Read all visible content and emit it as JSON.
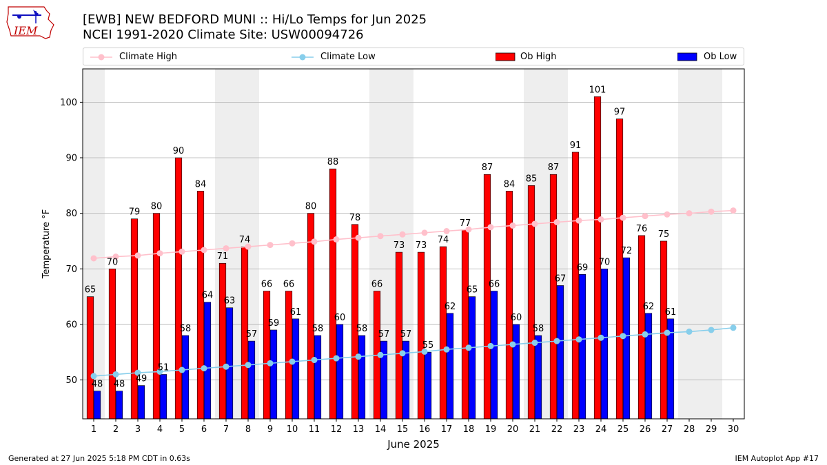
{
  "header": {
    "title_line1": "[EWB] NEW BEDFORD MUNI :: Hi/Lo Temps for Jun 2025",
    "title_line2": "NCEI 1991-2020 Climate Site: USW00094726",
    "logo_text": "IEM"
  },
  "footer": {
    "generated": "Generated at 27 Jun 2025 5:18 PM CDT in 0.63s",
    "app": "IEM Autoplot App #17"
  },
  "colors": {
    "climate_high": "#ffc0cb",
    "climate_low": "#87ceeb",
    "ob_high": "#ff0000",
    "ob_low": "#0000ff",
    "weekend_shade": "#eeeeee",
    "grid": "#b0b0b0"
  },
  "chart_data": {
    "type": "bar",
    "title": "[EWB] NEW BEDFORD MUNI :: Hi/Lo Temps for Jun 2025",
    "xlabel": "June 2025",
    "ylabel": "Temperature °F",
    "ylim": [
      43,
      106
    ],
    "yticks": [
      50,
      60,
      70,
      80,
      90,
      100
    ],
    "grid": "horizontal",
    "legend_position": "top",
    "x": [
      1,
      2,
      3,
      4,
      5,
      6,
      7,
      8,
      9,
      10,
      11,
      12,
      13,
      14,
      15,
      16,
      17,
      18,
      19,
      20,
      21,
      22,
      23,
      24,
      25,
      26,
      27,
      28,
      29,
      30
    ],
    "shaded_days": [
      1,
      7,
      8,
      14,
      15,
      21,
      22,
      28,
      29
    ],
    "series": [
      {
        "name": "Climate High",
        "kind": "line",
        "values": [
          71.9,
          72.2,
          72.4,
          72.8,
          73.1,
          73.4,
          73.7,
          74.0,
          74.3,
          74.6,
          74.9,
          75.3,
          75.6,
          75.9,
          76.2,
          76.5,
          76.8,
          77.1,
          77.5,
          77.8,
          78.1,
          78.4,
          78.7,
          78.9,
          79.2,
          79.5,
          79.8,
          80.0,
          80.3,
          80.5
        ]
      },
      {
        "name": "Climate Low",
        "kind": "line",
        "values": [
          50.7,
          51.0,
          51.3,
          51.5,
          51.8,
          52.1,
          52.4,
          52.7,
          53.0,
          53.3,
          53.6,
          53.9,
          54.2,
          54.5,
          54.8,
          55.1,
          55.5,
          55.8,
          56.1,
          56.4,
          56.7,
          57.0,
          57.3,
          57.6,
          57.9,
          58.2,
          58.5,
          58.7,
          59.0,
          59.4
        ]
      },
      {
        "name": "Ob High",
        "kind": "bar",
        "values": [
          65,
          70,
          79,
          80,
          90,
          84,
          71,
          74,
          66,
          66,
          80,
          88,
          78,
          66,
          73,
          73,
          74,
          77,
          87,
          84,
          85,
          87,
          91,
          101,
          97,
          76,
          75,
          null,
          null,
          null
        ]
      },
      {
        "name": "Ob Low",
        "kind": "bar",
        "values": [
          48,
          48,
          49,
          51,
          58,
          64,
          63,
          57,
          59,
          61,
          58,
          60,
          58,
          57,
          57,
          55,
          62,
          65,
          66,
          60,
          58,
          67,
          69,
          70,
          72,
          62,
          61,
          null,
          null,
          null
        ]
      }
    ]
  }
}
